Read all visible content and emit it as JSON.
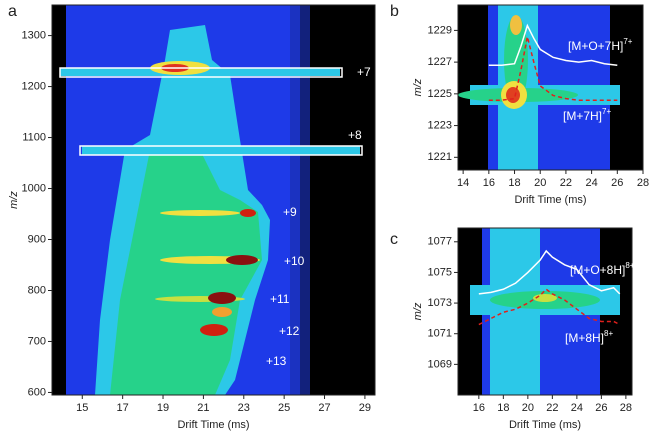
{
  "chart_data": [
    {
      "type": "heatmap",
      "panel": "a",
      "xlabel": "Drift Time (ms)",
      "ylabel": "m/z",
      "xlim": [
        13.5,
        29.5
      ],
      "ylim": [
        595,
        1360
      ],
      "xticks": [
        15,
        17,
        19,
        21,
        23,
        25,
        27,
        29
      ],
      "yticks": [
        600,
        700,
        800,
        900,
        1000,
        1100,
        1200,
        1300
      ],
      "annotations": [
        "+7",
        "+8",
        "+9",
        "+10",
        "+11",
        "+12",
        "+13"
      ]
    },
    {
      "type": "heatmap",
      "panel": "b",
      "xlabel": "Drift Time (ms)",
      "ylabel": "m/z",
      "xlim": [
        13.6,
        28
      ],
      "ylim": [
        1220.2,
        1230.6
      ],
      "xticks": [
        14,
        16,
        18,
        20,
        22,
        24,
        26,
        28
      ],
      "yticks": [
        1221,
        1223,
        1225,
        1227,
        1229
      ],
      "x": [
        16,
        17,
        18,
        18.5,
        19,
        19.5,
        20,
        21,
        22,
        23,
        24,
        25,
        26
      ],
      "series": [
        {
          "name": "[M+O+7H]",
          "charge": "7+",
          "color": "#ffffff",
          "dashed": false,
          "values": [
            1226.8,
            1226.8,
            1226.9,
            1228,
            1229.3,
            1228.5,
            1227.8,
            1227.3,
            1227.1,
            1227,
            1227.1,
            1226.9,
            1226.8
          ]
        },
        {
          "name": "[M+7H]",
          "charge": "7+",
          "color": "#e0201c",
          "dashed": true,
          "values": [
            1224.6,
            1224.6,
            1224.7,
            1226.5,
            1228.6,
            1227,
            1225.5,
            1224.9,
            1224.7,
            1224.6,
            1224.6,
            1224.6,
            1224.6
          ]
        }
      ]
    },
    {
      "type": "heatmap",
      "panel": "c",
      "xlabel": "Drift Time (ms)",
      "ylabel": "m/z",
      "xlim": [
        14.3,
        28.5
      ],
      "ylim": [
        1067,
        1077.9
      ],
      "xticks": [
        16,
        18,
        20,
        22,
        24,
        26,
        28
      ],
      "yticks": [
        1069,
        1071,
        1073,
        1075,
        1077
      ],
      "x": [
        16,
        17,
        18,
        19,
        20,
        21,
        21.5,
        22,
        23,
        24,
        25,
        26,
        27,
        27.5
      ],
      "series": [
        {
          "name": "[M+O+8H]",
          "charge": "8+",
          "color": "#ffffff",
          "dashed": false,
          "values": [
            1073.6,
            1073.7,
            1073.9,
            1074.3,
            1075,
            1075.8,
            1076.4,
            1076,
            1075.5,
            1075.2,
            1074.2,
            1073.8,
            1074,
            1073.6
          ]
        },
        {
          "name": "[M+8H]",
          "charge": "8+",
          "color": "#e0201c",
          "dashed": true,
          "values": [
            1071.6,
            1072,
            1072.4,
            1072.6,
            1073,
            1073.5,
            1073.9,
            1073.6,
            1073.2,
            1072.6,
            1072,
            1071.8,
            1071.8,
            1071.6
          ]
        }
      ]
    }
  ]
}
